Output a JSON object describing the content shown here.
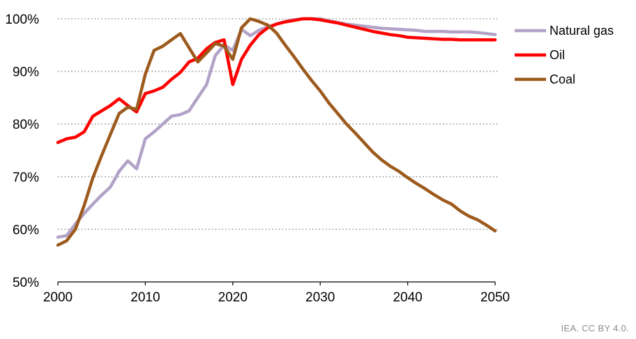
{
  "chart_data": {
    "type": "line",
    "title": "",
    "xlabel": "",
    "ylabel": "",
    "xlim": [
      2000,
      2050
    ],
    "ylim": [
      50,
      100
    ],
    "x_ticks": [
      2000,
      2010,
      2020,
      2030,
      2040,
      2050
    ],
    "x_tick_labels": [
      "2000",
      "2010",
      "2020",
      "2030",
      "2040",
      "2050"
    ],
    "y_ticks": [
      50,
      60,
      70,
      80,
      90,
      100
    ],
    "y_tick_labels": [
      "50%",
      "60%",
      "70%",
      "80%",
      "90%",
      "100%"
    ],
    "grid": "horizontal dotted",
    "legend_position": "right",
    "series": [
      {
        "name": "Natural gas",
        "color": "#B3A2C7",
        "x": [
          2000,
          2001,
          2002,
          2003,
          2004,
          2005,
          2006,
          2007,
          2008,
          2009,
          2010,
          2011,
          2012,
          2013,
          2014,
          2015,
          2016,
          2017,
          2018,
          2019,
          2020,
          2021,
          2022,
          2023,
          2024,
          2025,
          2026,
          2027,
          2028,
          2029,
          2030,
          2031,
          2032,
          2033,
          2034,
          2035,
          2036,
          2037,
          2038,
          2039,
          2040,
          2041,
          2042,
          2043,
          2044,
          2045,
          2046,
          2047,
          2048,
          2049,
          2050
        ],
        "values": [
          58.5,
          58.8,
          61.0,
          63.0,
          64.8,
          66.5,
          68.0,
          71.0,
          73.0,
          71.5,
          77.2,
          78.5,
          80.0,
          81.5,
          81.8,
          82.5,
          85.0,
          87.5,
          93.0,
          95.0,
          94.0,
          98.0,
          96.8,
          97.8,
          98.5,
          99.0,
          99.5,
          99.8,
          100,
          100,
          100,
          99.6,
          99.3,
          99.0,
          98.8,
          98.6,
          98.4,
          98.2,
          98.1,
          98.0,
          97.9,
          97.8,
          97.6,
          97.6,
          97.6,
          97.5,
          97.5,
          97.5,
          97.4,
          97.2,
          97.0
        ]
      },
      {
        "name": "Oil",
        "color": "#FF0000",
        "x": [
          2000,
          2001,
          2002,
          2003,
          2004,
          2005,
          2006,
          2007,
          2008,
          2009,
          2010,
          2011,
          2012,
          2013,
          2014,
          2015,
          2016,
          2017,
          2018,
          2019,
          2020,
          2021,
          2022,
          2023,
          2024,
          2025,
          2026,
          2027,
          2028,
          2029,
          2030,
          2031,
          2032,
          2033,
          2034,
          2035,
          2036,
          2037,
          2038,
          2039,
          2040,
          2041,
          2042,
          2043,
          2044,
          2045,
          2046,
          2047,
          2048,
          2049,
          2050
        ],
        "values": [
          76.5,
          77.2,
          77.5,
          78.5,
          81.5,
          82.5,
          83.5,
          84.8,
          83.5,
          82.3,
          85.8,
          86.3,
          87.0,
          88.5,
          89.8,
          91.8,
          92.5,
          94.3,
          95.5,
          96.0,
          87.5,
          92.3,
          95.0,
          97.0,
          98.3,
          99.0,
          99.4,
          99.7,
          100,
          100,
          99.8,
          99.5,
          99.2,
          98.8,
          98.4,
          98.0,
          97.6,
          97.3,
          97.0,
          96.8,
          96.5,
          96.4,
          96.3,
          96.2,
          96.1,
          96.1,
          96.0,
          96.0,
          96.0,
          96.0,
          96.0
        ]
      },
      {
        "name": "Coal",
        "color": "#9C5A1C",
        "x": [
          2000,
          2001,
          2002,
          2003,
          2004,
          2005,
          2006,
          2007,
          2008,
          2009,
          2010,
          2011,
          2012,
          2013,
          2014,
          2015,
          2016,
          2017,
          2018,
          2019,
          2020,
          2021,
          2022,
          2023,
          2024,
          2025,
          2026,
          2027,
          2028,
          2029,
          2030,
          2031,
          2032,
          2033,
          2034,
          2035,
          2036,
          2037,
          2038,
          2039,
          2040,
          2041,
          2042,
          2043,
          2044,
          2045,
          2046,
          2047,
          2048,
          2049,
          2050
        ],
        "values": [
          57.0,
          57.8,
          60.0,
          64.5,
          69.8,
          74.0,
          78.0,
          82.0,
          83.2,
          82.8,
          89.5,
          94.0,
          94.8,
          96.0,
          97.2,
          94.5,
          91.8,
          93.5,
          95.3,
          94.8,
          92.3,
          98.3,
          100,
          99.5,
          98.8,
          97.3,
          95.0,
          92.8,
          90.5,
          88.3,
          86.3,
          84.0,
          82.0,
          80.0,
          78.3,
          76.5,
          74.7,
          73.2,
          72.0,
          71.0,
          69.8,
          68.7,
          67.7,
          66.6,
          65.6,
          64.8,
          63.5,
          62.5,
          61.8,
          60.8,
          59.7
        ]
      }
    ]
  },
  "credit": "IEA. CC BY 4.0."
}
